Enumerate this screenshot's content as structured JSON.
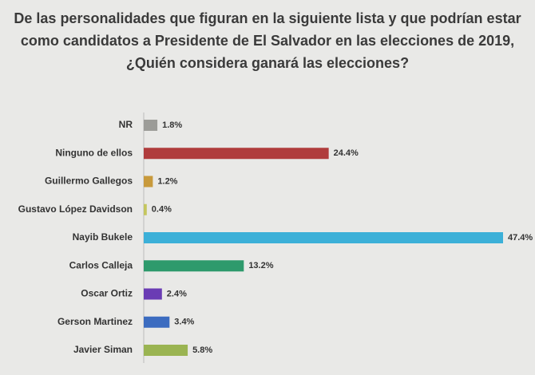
{
  "chart_data": {
    "type": "bar",
    "orientation": "horizontal",
    "title": [
      "De las personalidades que figuran en la siguiente lista y que podrían estar",
      "como candidatos a Presidente de El Salvador en las elecciones de 2019,",
      "¿Quién considera ganará las elecciones?"
    ],
    "categories": [
      "NR",
      "Ninguno de ellos",
      "Guillermo Gallegos",
      "Gustavo López Davidson",
      "Nayib Bukele",
      "Carlos Calleja",
      "Oscar Ortiz",
      "Gerson Martinez",
      "Javier Siman"
    ],
    "values": [
      1.8,
      24.4,
      1.2,
      0.4,
      47.4,
      13.2,
      2.4,
      3.4,
      5.8
    ],
    "value_labels": [
      "1.8%",
      "24.4%",
      "1.2%",
      "0.4%",
      "47.4%",
      "13.2%",
      "2.4%",
      "3.4%",
      "5.8%"
    ],
    "colors": [
      "#9c9c98",
      "#b03c3c",
      "#c89a3c",
      "#c4c65e",
      "#3cb0d8",
      "#2e9a6c",
      "#6a3cb4",
      "#3c6cc0",
      "#9ab452"
    ]
  }
}
